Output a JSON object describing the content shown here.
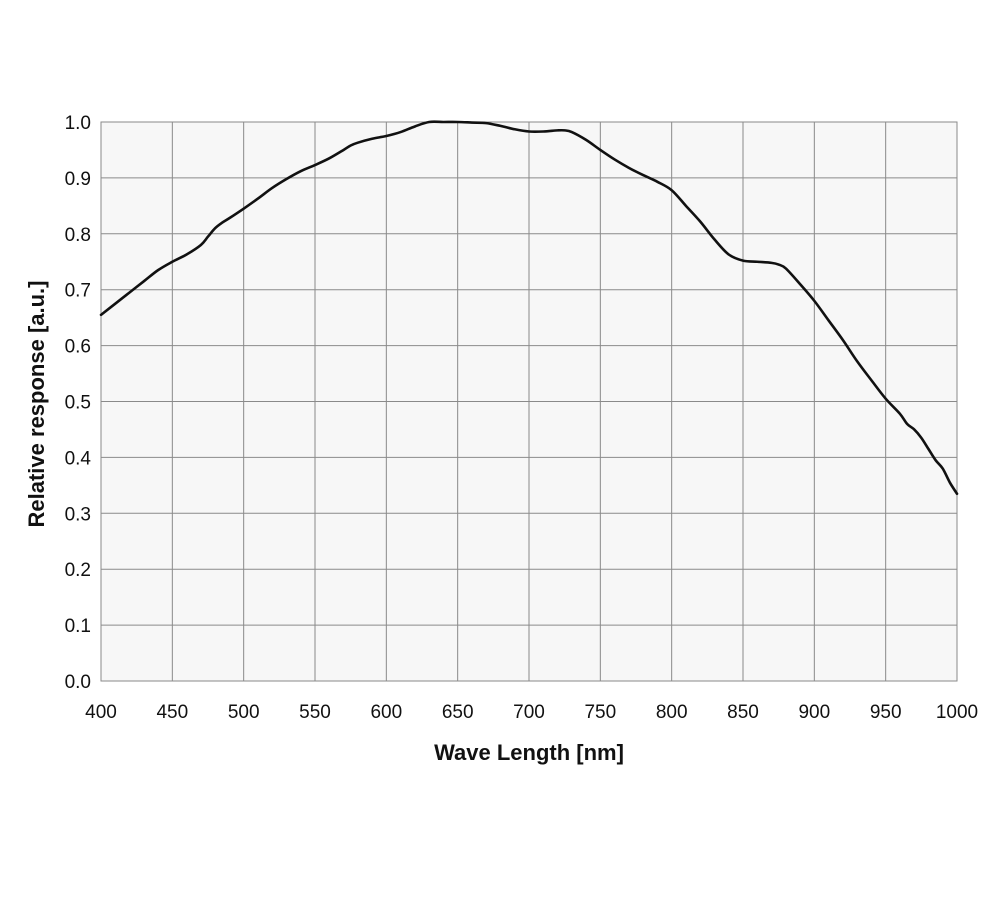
{
  "chart_data": {
    "type": "line",
    "title": "",
    "xlabel": "Wave Length [nm]",
    "ylabel": "Relative response [a.u.]",
    "xlim": [
      400,
      1000
    ],
    "ylim": [
      0.0,
      1.0
    ],
    "xticks": [
      400,
      450,
      500,
      550,
      600,
      650,
      700,
      750,
      800,
      850,
      900,
      950,
      1000
    ],
    "xtick_labels": [
      "400",
      "450",
      "500",
      "550",
      "600",
      "650",
      "700",
      "750",
      "800",
      "850",
      "900",
      "950",
      "1000"
    ],
    "yticks": [
      0.0,
      0.1,
      0.2,
      0.3,
      0.4,
      0.5,
      0.6,
      0.7,
      0.8,
      0.9,
      1.0
    ],
    "ytick_labels": [
      "0.0",
      "0.1",
      "0.2",
      "0.3",
      "0.4",
      "0.5",
      "0.6",
      "0.7",
      "0.8",
      "0.9",
      "1.0"
    ],
    "grid": true,
    "legend": "none",
    "line_color": "#111111",
    "plot_background": "#f7f7f7",
    "grid_color": "#8a8a8a",
    "series": [
      {
        "x": [
          400,
          410,
          420,
          430,
          440,
          450,
          460,
          470,
          475,
          480,
          485,
          490,
          500,
          510,
          520,
          530,
          540,
          550,
          560,
          570,
          575,
          580,
          590,
          600,
          610,
          620,
          630,
          640,
          650,
          660,
          670,
          680,
          690,
          700,
          710,
          720,
          725,
          730,
          740,
          750,
          760,
          770,
          780,
          790,
          800,
          810,
          820,
          830,
          840,
          850,
          860,
          870,
          875,
          880,
          890,
          900,
          910,
          920,
          930,
          940,
          950,
          960,
          965,
          970,
          975,
          980,
          985,
          990,
          995,
          1000
        ],
        "y": [
          0.655,
          0.675,
          0.695,
          0.715,
          0.735,
          0.75,
          0.763,
          0.78,
          0.795,
          0.81,
          0.82,
          0.828,
          0.845,
          0.863,
          0.882,
          0.898,
          0.912,
          0.923,
          0.935,
          0.95,
          0.958,
          0.963,
          0.97,
          0.975,
          0.982,
          0.992,
          1.0,
          1.0,
          1.0,
          0.999,
          0.998,
          0.993,
          0.987,
          0.983,
          0.983,
          0.985,
          0.985,
          0.982,
          0.968,
          0.95,
          0.933,
          0.918,
          0.905,
          0.893,
          0.878,
          0.85,
          0.822,
          0.79,
          0.763,
          0.752,
          0.75,
          0.748,
          0.745,
          0.738,
          0.71,
          0.68,
          0.645,
          0.61,
          0.572,
          0.538,
          0.505,
          0.478,
          0.46,
          0.45,
          0.435,
          0.415,
          0.395,
          0.38,
          0.355,
          0.335
        ]
      }
    ]
  }
}
